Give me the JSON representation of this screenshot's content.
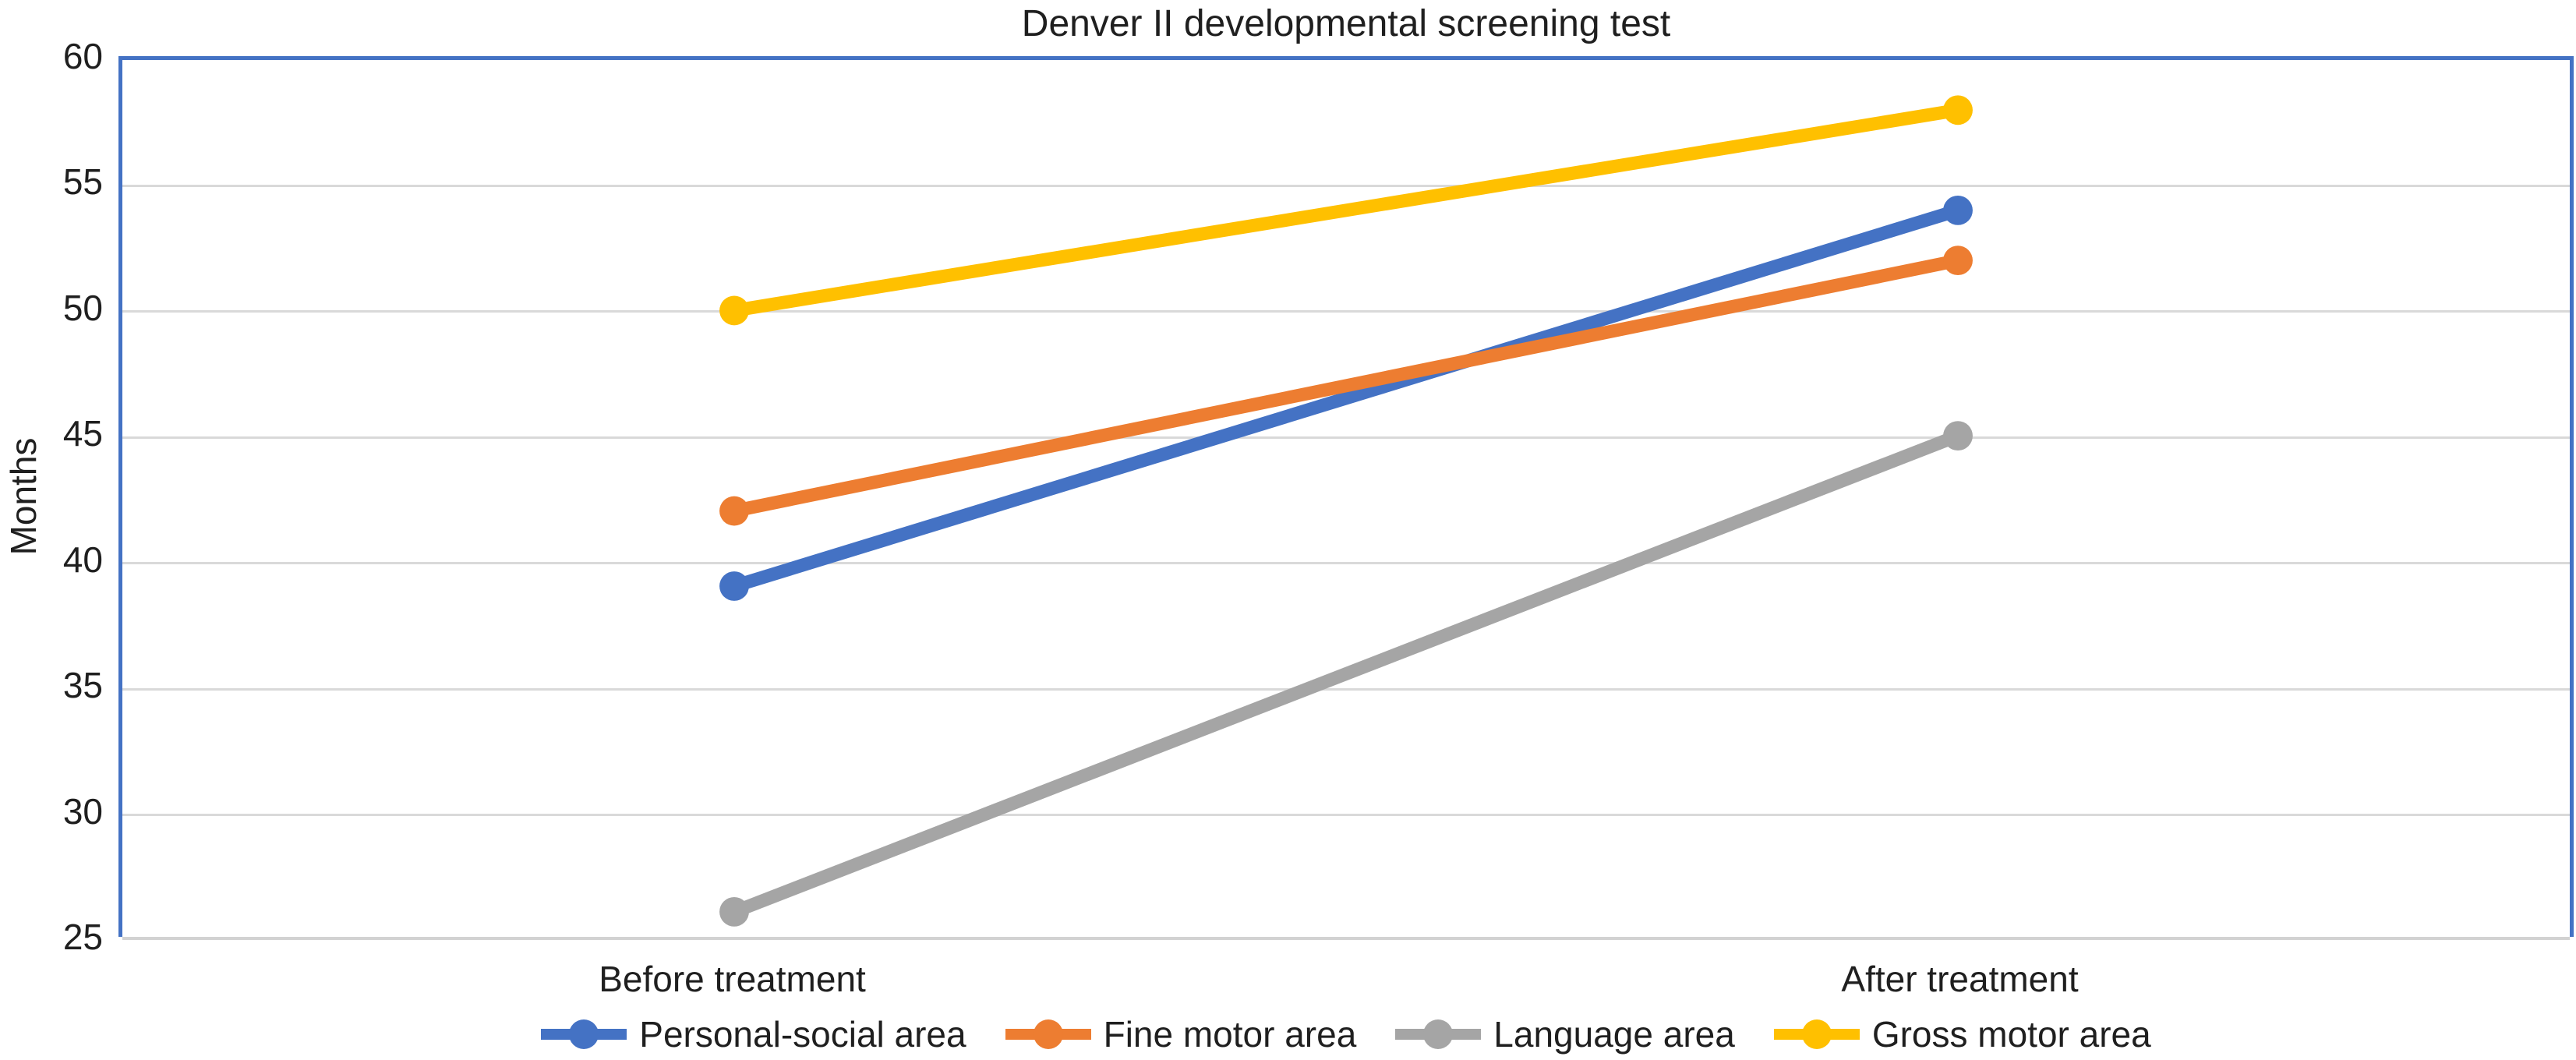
{
  "chart_data": {
    "type": "line",
    "title": "Denver II developmental screening test",
    "ylabel": "Months",
    "xlabel": "",
    "categories": [
      "Before treatment",
      "After treatment"
    ],
    "series": [
      {
        "name": "Personal-social area",
        "color": "#4472C4",
        "values": [
          39,
          54
        ]
      },
      {
        "name": "Fine motor area",
        "color": "#ED7D31",
        "values": [
          42,
          52
        ]
      },
      {
        "name": "Language area",
        "color": "#A5A5A5",
        "values": [
          26,
          45
        ]
      },
      {
        "name": "Gross motor area",
        "color": "#FFC000",
        "values": [
          50,
          58
        ]
      }
    ],
    "ylim": [
      25,
      60
    ],
    "yticks": [
      25,
      30,
      35,
      40,
      45,
      50,
      55,
      60
    ],
    "grid": true,
    "legend_position": "bottom",
    "marker": "circle",
    "colors": {
      "plot_border": "#4472C4",
      "gridline": "#D9D9D9",
      "axis_line": "#D2D2D2",
      "text": "#1f1f1f"
    }
  }
}
